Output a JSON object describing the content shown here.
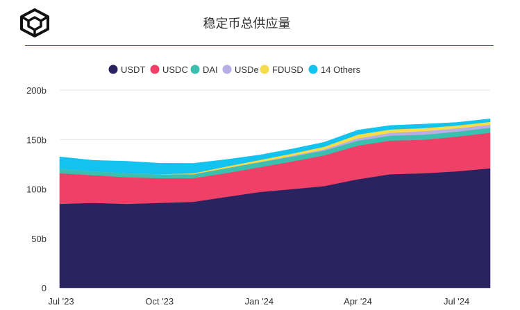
{
  "header": {
    "title": "稳定币总供应量",
    "logo_icon": "cube-logo-icon"
  },
  "colors": {
    "USDT": "#2b2360",
    "USDC": "#ef4167",
    "DAI": "#3bbfae",
    "USDe": "#b7aee6",
    "FDUSD": "#f4dc4b",
    "14 Others": "#14c2ef",
    "accent_rule": "#8a2be2"
  },
  "chart_data": {
    "type": "area",
    "stacked": true,
    "title": "稳定币总供应量",
    "legend_position": "top",
    "grid": true,
    "y_ticks": [
      "200b",
      "150b",
      "100b",
      "50b",
      "0"
    ],
    "y_tick_values": [
      200,
      150,
      100,
      50,
      0
    ],
    "ylim": [
      0,
      200
    ],
    "x_ticks": [
      "Jul '23",
      "Oct '23",
      "Jan '24",
      "Apr '24",
      "Jul '24"
    ],
    "x_tick_dates": [
      "2023-07-01",
      "2023-10-01",
      "2024-01-01",
      "2024-04-01",
      "2024-07-01"
    ],
    "x": [
      "2023-07-01",
      "2023-08-01",
      "2023-09-01",
      "2023-10-01",
      "2023-11-01",
      "2023-12-01",
      "2024-01-01",
      "2024-02-01",
      "2024-03-01",
      "2024-04-01",
      "2024-05-01",
      "2024-06-01",
      "2024-07-01",
      "2024-08-01"
    ],
    "series": [
      {
        "name": "USDT",
        "values": [
          85,
          86,
          85,
          86,
          87,
          92,
          97,
          100,
          103,
          110,
          115,
          116,
          118,
          121
        ]
      },
      {
        "name": "USDC",
        "values": [
          31,
          28,
          27,
          25,
          24,
          24,
          25,
          28,
          31,
          34,
          34,
          34,
          35,
          36
        ]
      },
      {
        "name": "DAI",
        "values": [
          4.5,
          4,
          4,
          4,
          4,
          5,
          5,
          5,
          5,
          5,
          5,
          5,
          5,
          5
        ]
      },
      {
        "name": "USDe",
        "values": [
          0,
          0,
          0,
          0,
          0,
          0.1,
          0.3,
          0.8,
          1.2,
          2.3,
          2.9,
          3.6,
          3.3,
          3
        ]
      },
      {
        "name": "FDUSD",
        "values": [
          0,
          0,
          0,
          0.1,
          0.9,
          1.6,
          2,
          2.3,
          2.7,
          3.8,
          3.4,
          3.1,
          3,
          3
        ]
      },
      {
        "name": "14 Others",
        "values": [
          12,
          11,
          12,
          11,
          10,
          7,
          5,
          4.5,
          4.5,
          4.5,
          4,
          4,
          3,
          3
        ]
      }
    ]
  }
}
